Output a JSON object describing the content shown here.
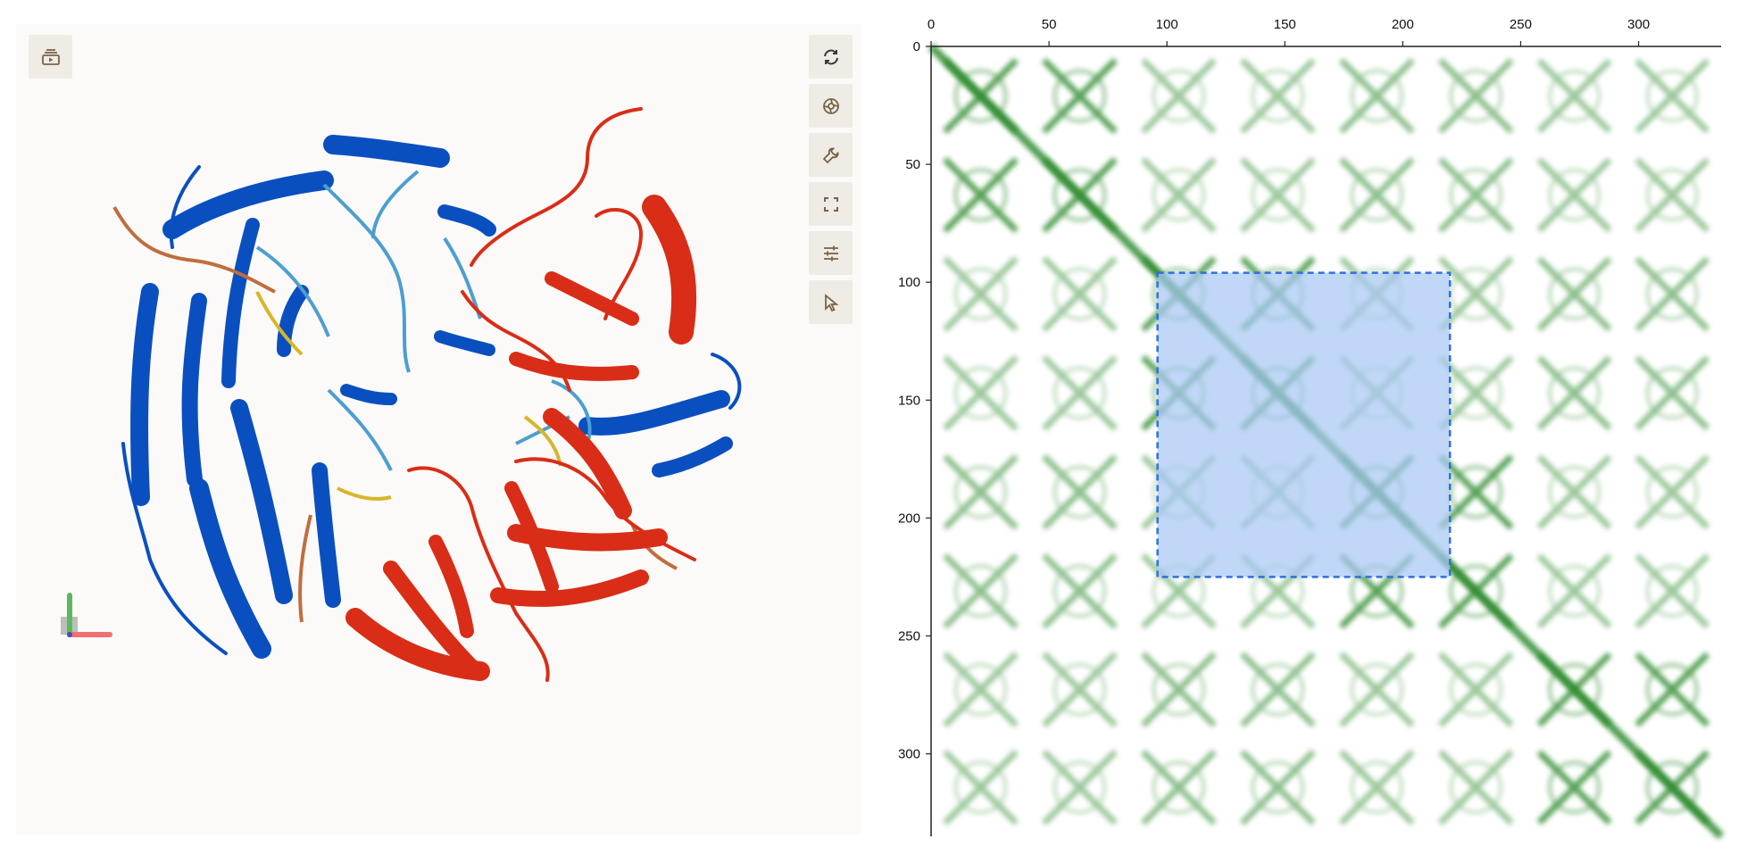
{
  "viewer": {
    "toolbar": {
      "left": [
        {
          "name": "session-icon"
        }
      ],
      "right": [
        {
          "name": "reset-camera-icon"
        },
        {
          "name": "screenshot-icon"
        },
        {
          "name": "wrench-icon"
        },
        {
          "name": "fullscreen-icon"
        },
        {
          "name": "settings-sliders-icon"
        },
        {
          "name": "cursor-select-icon"
        }
      ]
    },
    "colors": {
      "blue_chain": "#0a4fbf",
      "blue_loop": "#4d9ed0",
      "red_chain": "#d92d17",
      "yellow": "#d8b52a",
      "orange": "#c06d3e",
      "background": "#fbfaf8",
      "button": "#efece6",
      "icon": "#7a6446"
    }
  },
  "contact_map": {
    "chart_data": {
      "type": "heatmap",
      "x_ticks": [
        "0",
        "50",
        "100",
        "150",
        "200",
        "250",
        "300"
      ],
      "y_ticks": [
        "0",
        "50",
        "100",
        "150",
        "200",
        "250",
        "300"
      ],
      "xlim": [
        0,
        335
      ],
      "ylim": [
        0,
        335
      ],
      "block_boundaries": [
        0,
        84,
        168,
        252,
        335
      ],
      "selection": {
        "x": [
          96,
          220
        ],
        "y": [
          96,
          225
        ]
      },
      "colors": {
        "contact": "#2e8b2e",
        "selection_fill": "#a9c8f5",
        "selection_border": "#2f6fe0"
      }
    }
  }
}
